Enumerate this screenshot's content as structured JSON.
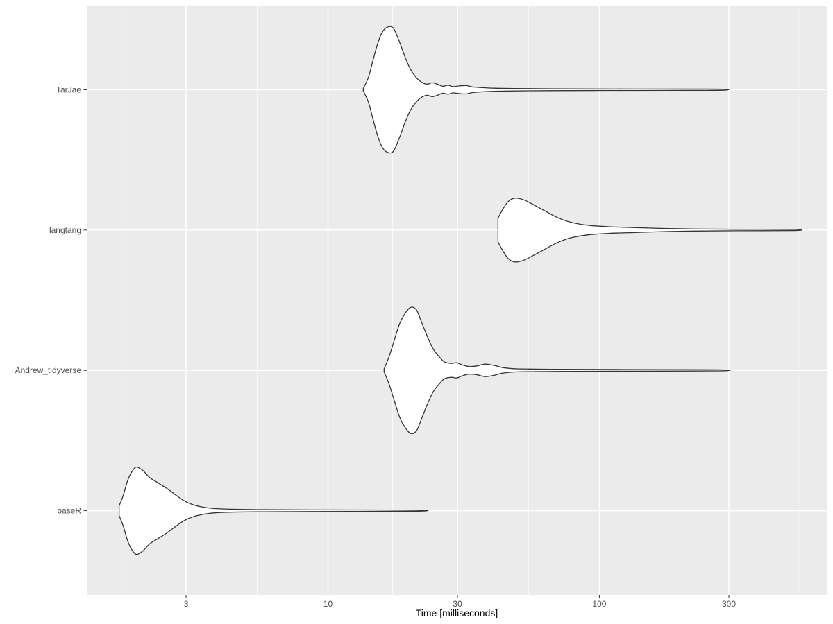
{
  "chart_data": {
    "type": "violin",
    "orientation": "horizontal",
    "title": "",
    "xlabel": "Time [milliseconds]",
    "ylabel": "",
    "x_scale": "log10",
    "x_domain": [
      1.292,
      692.4
    ],
    "x_ticks": [
      3,
      10,
      30,
      100,
      300
    ],
    "x_tick_labels": [
      "3",
      "10",
      "30",
      "100",
      "300"
    ],
    "x_minor_ticks": [
      1.732,
      5.477,
      17.32,
      54.77,
      173.2,
      547.7
    ],
    "grid": "on",
    "legend": "none",
    "categories": [
      "TarJae",
      "langtang",
      "Andrew_tidyverse",
      "baseR"
    ],
    "series": [
      {
        "name": "TarJae",
        "peak_ms": 16.5,
        "min_ms": 13.5,
        "max_ms": 283,
        "profile": [
          [
            13.5,
            2
          ],
          [
            14.1,
            18
          ],
          [
            14.6,
            40
          ],
          [
            15.2,
            65
          ],
          [
            15.8,
            82
          ],
          [
            16.5,
            90
          ],
          [
            17.4,
            89
          ],
          [
            18.3,
            70
          ],
          [
            19.2,
            48
          ],
          [
            20.1,
            30
          ],
          [
            21.1,
            18
          ],
          [
            22.1,
            11
          ],
          [
            23.2,
            8
          ],
          [
            24.2,
            10
          ],
          [
            25.3,
            8
          ],
          [
            26.5,
            5
          ],
          [
            27.7,
            6.5
          ],
          [
            28.9,
            4.5
          ],
          [
            30.4,
            5.5
          ],
          [
            32.3,
            6
          ],
          [
            34.2,
            4
          ],
          [
            37.1,
            3
          ],
          [
            41.1,
            2.2
          ],
          [
            48.3,
            1.8
          ],
          [
            64.8,
            1.4
          ],
          [
            104,
            1.1
          ],
          [
            177,
            1.0
          ],
          [
            283,
            0.8
          ]
        ]
      },
      {
        "name": "langtang",
        "peak_ms": 48.8,
        "min_ms": 42.3,
        "max_ms": 525,
        "profile": [
          [
            42.3,
            17
          ],
          [
            44.1,
            30
          ],
          [
            46.1,
            41
          ],
          [
            48.8,
            46
          ],
          [
            52.7,
            43.5
          ],
          [
            57.5,
            36
          ],
          [
            64.1,
            26
          ],
          [
            70.6,
            17.5
          ],
          [
            78.9,
            11
          ],
          [
            90.3,
            7
          ],
          [
            108,
            4.8
          ],
          [
            136,
            3.5
          ],
          [
            172,
            2.3
          ],
          [
            224,
            1.5
          ],
          [
            318,
            1.1
          ],
          [
            525,
            0.8
          ]
        ]
      },
      {
        "name": "Andrew_tidyverse",
        "peak_ms": 20.2,
        "min_ms": 16.1,
        "max_ms": 275,
        "profile": [
          [
            16.1,
            2
          ],
          [
            16.8,
            20
          ],
          [
            17.6,
            45
          ],
          [
            18.4,
            68
          ],
          [
            19.3,
            83
          ],
          [
            20.2,
            91
          ],
          [
            21.2,
            87
          ],
          [
            22.2,
            68
          ],
          [
            23.4,
            46
          ],
          [
            24.5,
            30
          ],
          [
            25.8,
            19
          ],
          [
            26.9,
            12
          ],
          [
            28.5,
            10
          ],
          [
            29.8,
            11
          ],
          [
            31.2,
            8
          ],
          [
            33.1,
            5.5
          ],
          [
            35.5,
            6.5
          ],
          [
            38.0,
            9
          ],
          [
            41.1,
            7
          ],
          [
            44.1,
            4
          ],
          [
            49.9,
            2.2
          ],
          [
            68.7,
            1.6
          ],
          [
            124,
            1.2
          ],
          [
            275,
            0.8
          ]
        ]
      },
      {
        "name": "baseR",
        "peak_ms": 1.97,
        "min_ms": 1.7,
        "max_ms": 21.0,
        "profile": [
          [
            1.7,
            7
          ],
          [
            1.76,
            22
          ],
          [
            1.83,
            44
          ],
          [
            1.9,
            57
          ],
          [
            1.97,
            63
          ],
          [
            2.08,
            58
          ],
          [
            2.2,
            48
          ],
          [
            2.37,
            40
          ],
          [
            2.55,
            32
          ],
          [
            2.74,
            23
          ],
          [
            2.93,
            15
          ],
          [
            3.14,
            9.5
          ],
          [
            3.43,
            5.5
          ],
          [
            3.8,
            3.2
          ],
          [
            4.31,
            2.2
          ],
          [
            5.47,
            1.6
          ],
          [
            8.78,
            1.2
          ],
          [
            21.0,
            0.8
          ]
        ]
      }
    ],
    "style": {
      "panel_bg": "#EBEBEB",
      "outer_bg": "#FFFFFF",
      "grid_color": "#FFFFFF",
      "violin_fill": "#FFFFFF",
      "violin_outline": "#333333",
      "tick_text_color": "#4D4D4D",
      "axis_title_color": "#000000",
      "tick_mark_color": "#333333"
    }
  }
}
